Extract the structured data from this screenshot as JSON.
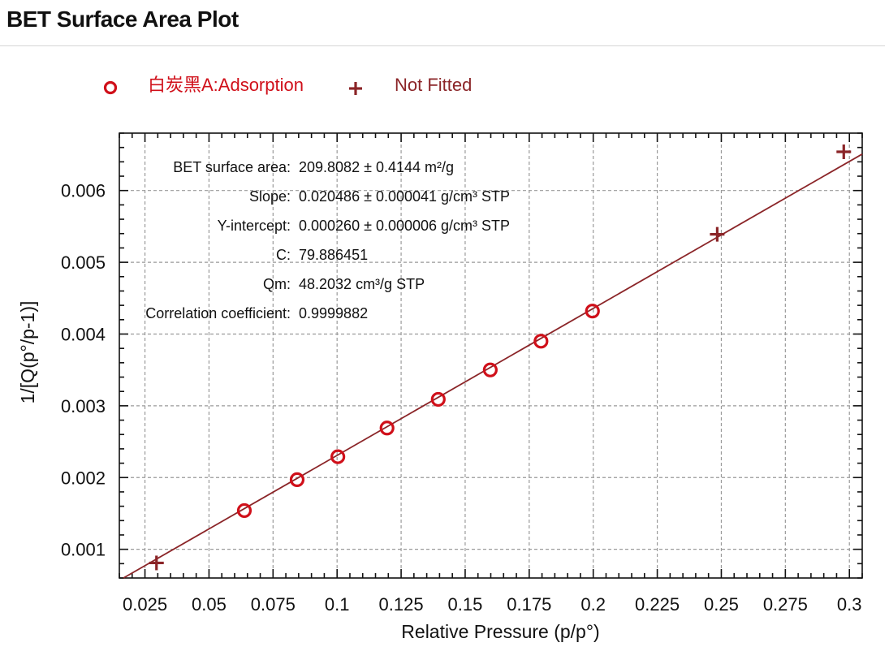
{
  "page": {
    "title": "BET Surface Area Plot"
  },
  "colors": {
    "adsorption": "#d0101a",
    "not_fitted": "#8b2528",
    "fit_line": "#8b2528",
    "grid": "#9a9a9a",
    "axis": "#111111"
  },
  "chart_data": {
    "type": "scatter",
    "title": "",
    "xlabel": "Relative Pressure (p/p°)",
    "ylabel": "1/[Q(p°/p-1)]",
    "xlim": [
      0.015,
      0.305
    ],
    "ylim": [
      0.0006,
      0.0068
    ],
    "grid": true,
    "legend_position": "top-left",
    "x_ticks": [
      0.025,
      0.05,
      0.075,
      0.1,
      0.125,
      0.15,
      0.175,
      0.2,
      0.225,
      0.25,
      0.275,
      0.3
    ],
    "x_tick_labels": [
      "0.025",
      "0.05",
      "0.075",
      "0.1",
      "0.125",
      "0.15",
      "0.175",
      "0.2",
      "0.225",
      "0.25",
      "0.275",
      "0.3"
    ],
    "y_ticks": [
      0.001,
      0.002,
      0.003,
      0.004,
      0.005,
      0.006
    ],
    "y_tick_labels": [
      "0.001",
      "0.002",
      "0.003",
      "0.004",
      "0.005",
      "0.006"
    ],
    "series": [
      {
        "name": "白炭黑A:Adsorption",
        "marker": "circle",
        "color": "#d0101a",
        "x": [
          0.0638,
          0.0844,
          0.1003,
          0.1195,
          0.1395,
          0.1598,
          0.1796,
          0.1997
        ],
        "y": [
          0.00154,
          0.00197,
          0.00229,
          0.00269,
          0.00309,
          0.0035,
          0.0039,
          0.00432
        ]
      },
      {
        "name": "Not Fitted",
        "marker": "plus",
        "color": "#8b2528",
        "x": [
          0.0295,
          0.2484,
          0.2978
        ],
        "y": [
          0.00081,
          0.00539,
          0.00654
        ]
      }
    ],
    "fit_line": {
      "slope": 0.020486,
      "intercept": 0.00026
    },
    "annotations": [
      {
        "label": "BET surface area:",
        "value": "209.8082 ± 0.4144 m²/g"
      },
      {
        "label": "Slope:",
        "value": "0.020486 ± 0.000041 g/cm³ STP"
      },
      {
        "label": "Y-intercept:",
        "value": "0.000260 ± 0.000006 g/cm³ STP"
      },
      {
        "label": "C:",
        "value": "79.886451"
      },
      {
        "label": "Qm:",
        "value": "48.2032 cm³/g STP"
      },
      {
        "label": "Correlation coefficient:",
        "value": "0.9999882"
      }
    ]
  }
}
